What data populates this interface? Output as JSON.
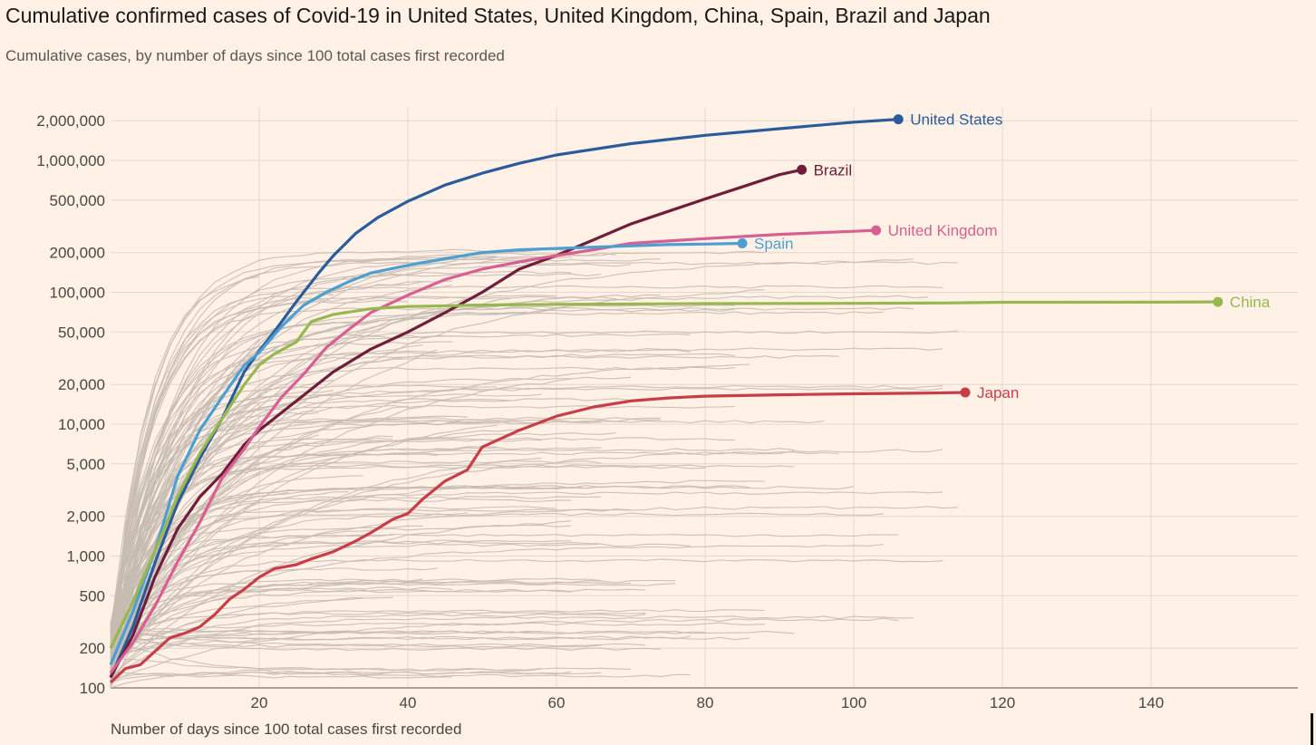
{
  "title": "Cumulative confirmed cases of Covid-19 in United States, United Kingdom, China, Spain, Brazil and Japan",
  "subtitle": "Cumulative cases, by number of days since 100 total cases first recorded",
  "chart_data": {
    "type": "line",
    "title": "Cumulative confirmed cases of Covid-19 in United States, United Kingdom, China, Spain, Brazil and Japan",
    "subtitle": "Cumulative cases, by number of days since 100 total cases first recorded",
    "xlabel": "Number of days since 100 total cases first recorded",
    "ylabel": "",
    "yscale": "log",
    "xlim": [
      0,
      160
    ],
    "ylim": [
      100,
      2500000
    ],
    "x_ticks": [
      20,
      40,
      60,
      80,
      100,
      120,
      140
    ],
    "y_ticks": [
      {
        "value": 100,
        "label": "100"
      },
      {
        "value": 200,
        "label": "200"
      },
      {
        "value": 500,
        "label": "500"
      },
      {
        "value": 1000,
        "label": "1,000"
      },
      {
        "value": 2000,
        "label": "2,000"
      },
      {
        "value": 5000,
        "label": "5,000"
      },
      {
        "value": 10000,
        "label": "10,000"
      },
      {
        "value": 20000,
        "label": "20,000"
      },
      {
        "value": 50000,
        "label": "50,000"
      },
      {
        "value": 100000,
        "label": "100,000"
      },
      {
        "value": 200000,
        "label": "200,000"
      },
      {
        "value": 500000,
        "label": "500,000"
      },
      {
        "value": 1000000,
        "label": "1,000,000"
      },
      {
        "value": 2000000,
        "label": "2,000,000"
      }
    ],
    "grid": true,
    "legend": "direct labels at line ends",
    "background_lines": "many other countries shown as thin grey lines",
    "series": [
      {
        "name": "United States",
        "color": "#2a5b9b",
        "x": [
          0,
          3,
          6,
          9,
          12,
          15,
          18,
          20,
          22,
          25,
          28,
          30,
          33,
          36,
          40,
          45,
          50,
          55,
          60,
          70,
          80,
          90,
          100,
          106
        ],
        "y": [
          120,
          290,
          900,
          2500,
          5500,
          11000,
          25000,
          36000,
          50000,
          85000,
          140000,
          190000,
          280000,
          370000,
          490000,
          650000,
          800000,
          950000,
          1100000,
          1340000,
          1550000,
          1740000,
          1950000,
          2050000
        ]
      },
      {
        "name": "Brazil",
        "color": "#6e1d3a",
        "x": [
          0,
          3,
          6,
          9,
          12,
          15,
          18,
          20,
          25,
          30,
          35,
          40,
          45,
          50,
          55,
          60,
          65,
          70,
          75,
          80,
          85,
          90,
          93
        ],
        "y": [
          120,
          250,
          700,
          1600,
          2800,
          4200,
          7000,
          9000,
          15000,
          25000,
          37000,
          50000,
          70000,
          100000,
          150000,
          190000,
          250000,
          330000,
          410000,
          510000,
          630000,
          780000,
          850000
        ]
      },
      {
        "name": "United Kingdom",
        "color": "#d85f91",
        "x": [
          0,
          3,
          6,
          9,
          12,
          15,
          18,
          20,
          23,
          26,
          29,
          32,
          35,
          40,
          45,
          50,
          55,
          60,
          65,
          70,
          80,
          90,
          100,
          103
        ],
        "y": [
          130,
          220,
          420,
          900,
          1800,
          3900,
          6500,
          9500,
          16000,
          24000,
          38000,
          52000,
          70000,
          95000,
          125000,
          150000,
          170000,
          190000,
          210000,
          235000,
          255000,
          275000,
          290000,
          295000
        ]
      },
      {
        "name": "Spain",
        "color": "#4d9fd1",
        "x": [
          0,
          3,
          6,
          9,
          12,
          15,
          18,
          20,
          23,
          26,
          29,
          32,
          35,
          40,
          45,
          50,
          55,
          60,
          65,
          70,
          75,
          80,
          85
        ],
        "y": [
          150,
          380,
          1100,
          4000,
          9000,
          16000,
          28000,
          35000,
          55000,
          80000,
          100000,
          120000,
          140000,
          160000,
          180000,
          200000,
          210000,
          215000,
          220000,
          225000,
          230000,
          232000,
          235000
        ]
      },
      {
        "name": "China",
        "color": "#96b84f",
        "x": [
          0,
          3,
          6,
          9,
          12,
          15,
          18,
          20,
          22,
          25,
          27,
          30,
          35,
          40,
          50,
          60,
          80,
          100,
          112,
          120,
          140,
          149
        ],
        "y": [
          200,
          450,
          1100,
          2800,
          6000,
          11000,
          20000,
          28000,
          34000,
          42000,
          60000,
          68000,
          75000,
          78000,
          80000,
          81000,
          82000,
          82500,
          83000,
          84000,
          84200,
          84500
        ]
      },
      {
        "name": "Japan",
        "color": "#c73e49",
        "x": [
          0,
          2,
          4,
          6,
          8,
          10,
          12,
          14,
          16,
          18,
          20,
          22,
          25,
          27,
          30,
          33,
          35,
          38,
          40,
          42,
          45,
          48,
          50,
          55,
          60,
          65,
          70,
          75,
          80,
          90,
          100,
          110,
          115
        ],
        "y": [
          110,
          140,
          150,
          190,
          240,
          260,
          290,
          360,
          470,
          560,
          690,
          800,
          860,
          950,
          1080,
          1300,
          1500,
          1900,
          2100,
          2700,
          3700,
          4500,
          6700,
          9000,
          11500,
          13500,
          15000,
          15800,
          16300,
          16700,
          17000,
          17200,
          17400
        ]
      }
    ]
  }
}
